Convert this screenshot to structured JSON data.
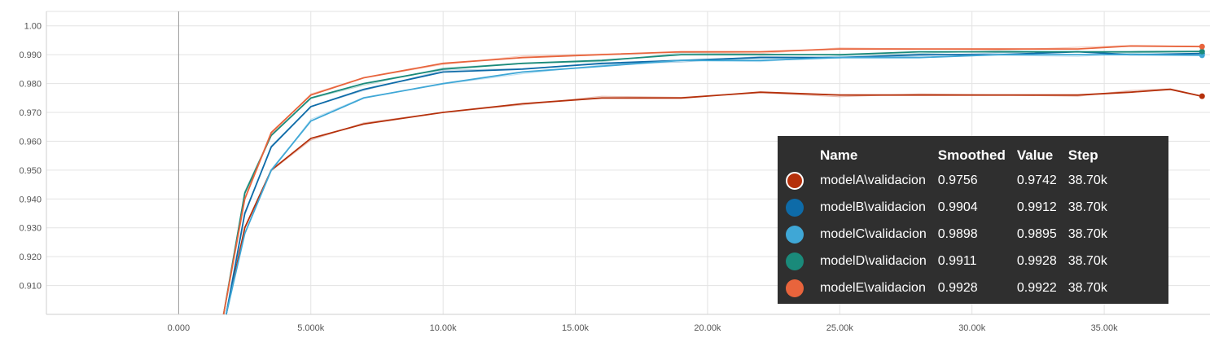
{
  "chart_data": {
    "type": "line",
    "xlim": [
      -5000,
      39000
    ],
    "ylim": [
      0.9,
      1.005
    ],
    "x_ticks": [
      0,
      5000,
      10000,
      15000,
      20000,
      25000,
      30000,
      35000
    ],
    "x_tick_labels": [
      "0.000",
      "5.000k",
      "10.00k",
      "15.00k",
      "20.00k",
      "25.00k",
      "30.00k",
      "35.00k"
    ],
    "y_ticks": [
      0.91,
      0.92,
      0.93,
      0.94,
      0.95,
      0.96,
      0.97,
      0.98,
      0.99,
      1.0
    ],
    "y_tick_labels": [
      "0.910",
      "0.920",
      "0.930",
      "0.940",
      "0.950",
      "0.960",
      "0.970",
      "0.980",
      "0.990",
      "1.00"
    ],
    "grid": true,
    "series": [
      {
        "name": "modelA\\validacion",
        "color": "#b5300b",
        "x": [
          1800,
          2500,
          3500,
          5000,
          7000,
          10000,
          13000,
          16000,
          19000,
          22000,
          25000,
          28000,
          31000,
          34000,
          36000,
          37500,
          38700
        ],
        "y": [
          0.9,
          0.93,
          0.95,
          0.961,
          0.966,
          0.97,
          0.973,
          0.975,
          0.975,
          0.977,
          0.976,
          0.976,
          0.976,
          0.976,
          0.977,
          0.978,
          0.9756
        ]
      },
      {
        "name": "modelB\\validacion",
        "color": "#0e6ba8",
        "x": [
          1800,
          2500,
          3500,
          5000,
          7000,
          10000,
          13000,
          16000,
          19000,
          22000,
          25000,
          28000,
          31000,
          34000,
          36000,
          38700
        ],
        "y": [
          0.9,
          0.935,
          0.958,
          0.972,
          0.978,
          0.984,
          0.985,
          0.987,
          0.988,
          0.989,
          0.989,
          0.99,
          0.99,
          0.991,
          0.99,
          0.9904
        ]
      },
      {
        "name": "modelC\\validacion",
        "color": "#3fa7d6",
        "x": [
          1800,
          2500,
          3500,
          5000,
          7000,
          10000,
          13000,
          16000,
          19000,
          22000,
          25000,
          28000,
          31000,
          34000,
          36000,
          38700
        ],
        "y": [
          0.9,
          0.928,
          0.95,
          0.967,
          0.975,
          0.98,
          0.984,
          0.986,
          0.988,
          0.988,
          0.989,
          0.989,
          0.99,
          0.99,
          0.99,
          0.9898
        ]
      },
      {
        "name": "modelD\\validacion",
        "color": "#1a8a7a",
        "x": [
          1700,
          2500,
          3500,
          5000,
          7000,
          10000,
          13000,
          16000,
          19000,
          22000,
          25000,
          28000,
          31000,
          34000,
          36000,
          38700
        ],
        "y": [
          0.9,
          0.942,
          0.962,
          0.975,
          0.98,
          0.985,
          0.987,
          0.988,
          0.99,
          0.99,
          0.99,
          0.991,
          0.991,
          0.991,
          0.991,
          0.9911
        ]
      },
      {
        "name": "modelE\\validacion",
        "color": "#e8643c",
        "x": [
          1700,
          2500,
          3500,
          5000,
          7000,
          10000,
          13000,
          16000,
          19000,
          22000,
          25000,
          28000,
          31000,
          34000,
          36000,
          38700
        ],
        "y": [
          0.9,
          0.94,
          0.963,
          0.976,
          0.982,
          0.987,
          0.989,
          0.99,
          0.991,
          0.991,
          0.992,
          0.992,
          0.992,
          0.992,
          0.993,
          0.9928
        ]
      }
    ],
    "tooltip": {
      "headers": [
        "Name",
        "Smoothed",
        "Value",
        "Step"
      ],
      "rows": [
        {
          "name": "modelA\\validacion",
          "smoothed": "0.9756",
          "value": "0.9742",
          "step": "38.70k",
          "color": "#b5300b"
        },
        {
          "name": "modelB\\validacion",
          "smoothed": "0.9904",
          "value": "0.9912",
          "step": "38.70k",
          "color": "#0e6ba8"
        },
        {
          "name": "modelC\\validacion",
          "smoothed": "0.9898",
          "value": "0.9895",
          "step": "38.70k",
          "color": "#3fa7d6"
        },
        {
          "name": "modelD\\validacion",
          "smoothed": "0.9911",
          "value": "0.9928",
          "step": "38.70k",
          "color": "#1a8a7a"
        },
        {
          "name": "modelE\\validacion",
          "smoothed": "0.9928",
          "value": "0.9922",
          "step": "38.70k",
          "color": "#e8643c"
        }
      ]
    }
  }
}
